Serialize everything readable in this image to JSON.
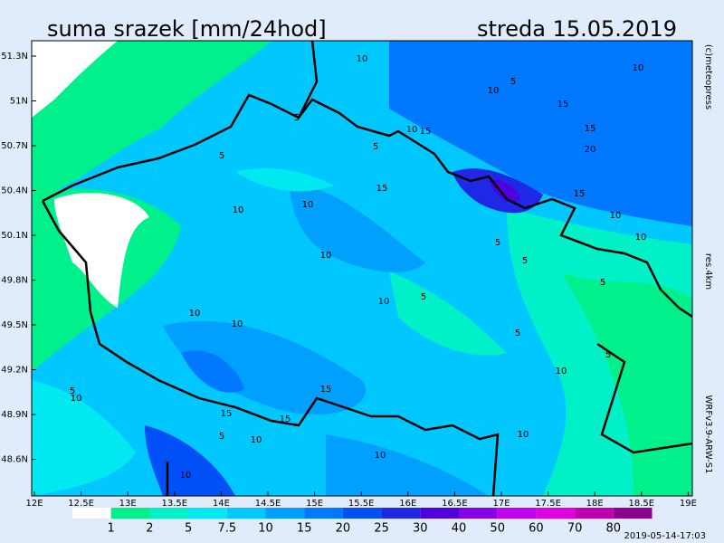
{
  "header": {
    "title": "suma srazek [mm/24hod]",
    "date": "streda 15.05.2019"
  },
  "map": {
    "lat_labels": [
      "51.3N",
      "51N",
      "50.7N",
      "50.4N",
      "50.1N",
      "49.8N",
      "49.5N",
      "49.2N",
      "48.9N",
      "48.6N"
    ],
    "lon_labels": [
      "12E",
      "12.5E",
      "13E",
      "13.5E",
      "14E",
      "14.5E",
      "15E",
      "15.5E",
      "16E",
      "16.5E",
      "17E",
      "17.5E",
      "18E",
      "18.5E",
      "19E"
    ],
    "contour_labels": [
      "10",
      "10",
      "5",
      "10",
      "15",
      "5",
      "15",
      "15",
      "20",
      "5",
      "5",
      "10",
      "15",
      "15",
      "10",
      "10",
      "10",
      "5",
      "10",
      "5",
      "10",
      "10",
      "10",
      "5",
      "5",
      "10",
      "5",
      "10",
      "15",
      "15",
      "15",
      "10",
      "10",
      "10",
      "5",
      "5",
      "10",
      "10",
      "5"
    ]
  },
  "legend": {
    "labels": [
      1,
      2,
      5,
      7.5,
      10,
      15,
      20,
      25,
      30,
      40,
      50,
      60,
      70,
      80
    ],
    "colors": [
      "#ffffff",
      "#00f08c",
      "#00f0c8",
      "#00e8f0",
      "#00c8ff",
      "#00a0ff",
      "#0078ff",
      "#0050f8",
      "#2028e8",
      "#5000e0",
      "#8800e8",
      "#c000f0",
      "#e000e0",
      "#c000b0",
      "#900090"
    ]
  },
  "credits": {
    "copyright": "(c)meteopress",
    "resolution": "res.4km",
    "model": "WRFv3.9-ARW-S1",
    "run": "2019-05-14-17:03"
  }
}
